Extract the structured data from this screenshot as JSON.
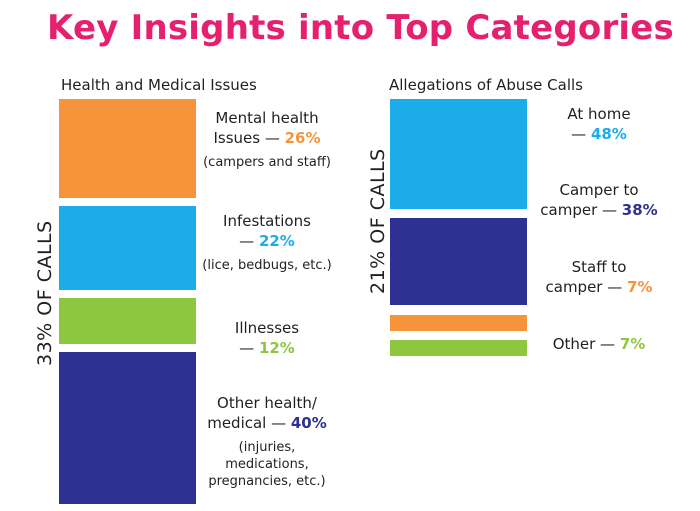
{
  "page": {
    "title": "Key Insights into Top Categories"
  },
  "colors": {
    "title": "#e5206f",
    "orange": "#f7943b",
    "blue": "#1cace9",
    "green": "#8dc63f",
    "navy": "#2e3192"
  },
  "chart_data": [
    {
      "type": "stacked-bar",
      "title": "Health and Medical Issues",
      "side_label": "33% OF CALLS",
      "total_share_percent": 33,
      "series": [
        {
          "name": "Mental health Issues",
          "label_lines": [
            "Mental health",
            "Issues — "
          ],
          "value": 26,
          "value_label": "26%",
          "note": [
            "(campers and staff)"
          ],
          "color": "#f7943b"
        },
        {
          "name": "Infestations",
          "label_lines": [
            "Infestations",
            "— "
          ],
          "value": 22,
          "value_label": "22%",
          "note": [
            "(lice, bedbugs, etc.)"
          ],
          "color": "#1cace9"
        },
        {
          "name": "Illnesses",
          "label_lines": [
            "Illnesses",
            "— "
          ],
          "value": 12,
          "value_label": "12%",
          "note": [],
          "color": "#8dc63f"
        },
        {
          "name": "Other health/ medical",
          "label_lines": [
            "Other health/",
            "medical — "
          ],
          "value": 40,
          "value_label": "40%",
          "note": [
            "(injuries,",
            "medications,",
            "pregnancies, etc.)"
          ],
          "color": "#2e3192"
        }
      ]
    },
    {
      "type": "stacked-bar",
      "title": "Allegations of Abuse Calls",
      "side_label": "21% OF CALLS",
      "total_share_percent": 21,
      "series": [
        {
          "name": "At home",
          "label_lines": [
            "At home",
            "— "
          ],
          "value": 48,
          "value_label": "48%",
          "note": [],
          "color": "#1cace9"
        },
        {
          "name": "Camper to camper",
          "label_lines": [
            "Camper to",
            "camper — "
          ],
          "value": 38,
          "value_label": "38%",
          "note": [],
          "color": "#2e3192"
        },
        {
          "name": "Staff to camper",
          "label_lines": [
            "Staff to",
            "camper — "
          ],
          "value": 7,
          "value_label": "7%",
          "note": [],
          "color": "#f7943b"
        },
        {
          "name": "Other",
          "label_lines": [
            "Other — "
          ],
          "value": 7,
          "value_label": "7%",
          "note": [],
          "color": "#8dc63f"
        }
      ]
    }
  ]
}
